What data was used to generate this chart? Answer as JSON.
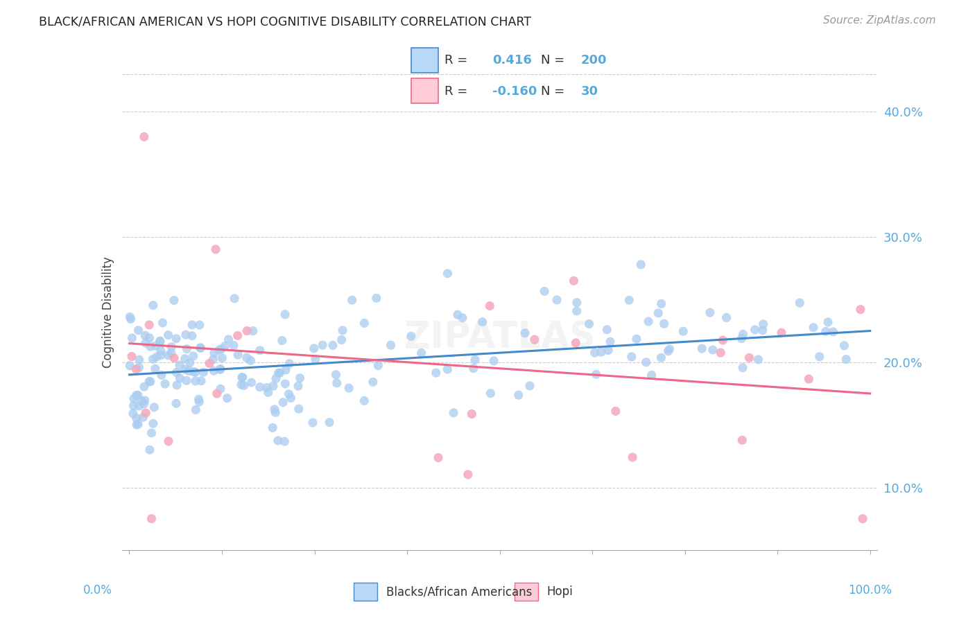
{
  "title": "BLACK/AFRICAN AMERICAN VS HOPI COGNITIVE DISABILITY CORRELATION CHART",
  "source": "Source: ZipAtlas.com",
  "ylabel": "Cognitive Disability",
  "blue_R": 0.416,
  "blue_N": 200,
  "pink_R": -0.16,
  "pink_N": 30,
  "blue_color": "#A8CCF0",
  "pink_color": "#F5A8BC",
  "blue_line_color": "#4488CC",
  "pink_line_color": "#EE6688",
  "legend_blue_box": "#B8D8F8",
  "legend_pink_box": "#FFCCD8",
  "title_color": "#222222",
  "axis_label_color": "#55AADD",
  "source_color": "#999999",
  "background_color": "#FFFFFF",
  "grid_color": "#CCCCCC",
  "y_tick_vals": [
    10,
    20,
    30,
    40
  ],
  "y_tick_labels": [
    "10.0%",
    "20.0%",
    "30.0%",
    "40.0%"
  ],
  "xmin": 0.0,
  "xmax": 100.0,
  "ymin": 5.0,
  "ymax": 43.0,
  "blue_line_start_y": 19.0,
  "blue_line_end_y": 22.5,
  "pink_line_start_y": 21.5,
  "pink_line_end_y": 17.5
}
